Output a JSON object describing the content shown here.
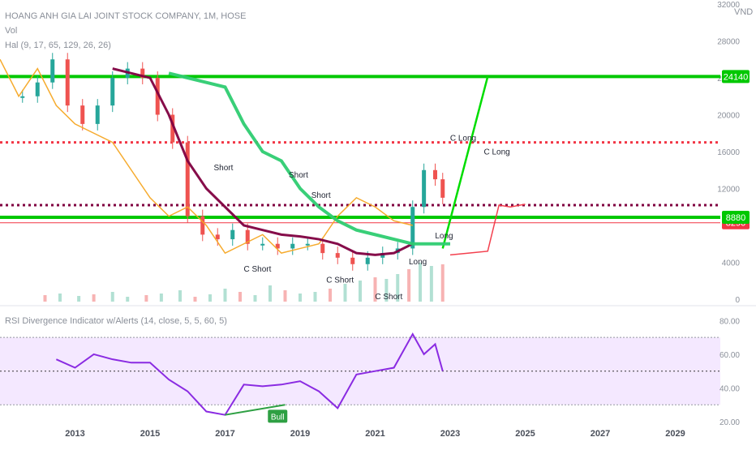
{
  "header": {
    "symbol_line": "HOANG ANH GIA LAI JOINT STOCK COMPANY, 1M, HOSE",
    "vol_label": "Vol",
    "hal_label": "Hal (9, 17, 65, 129, 26, 26)",
    "currency": "VND",
    "rsi_label": "RSI Divergence Indicator w/Alerts (14, close, 5, 5, 60, 5)"
  },
  "price_badges": [
    {
      "value": "24140",
      "color": "#00c800"
    },
    {
      "value": "8290",
      "color": "#f23645"
    },
    {
      "value": "8880",
      "color": "#00c800"
    }
  ],
  "colors": {
    "green_level": "#00dd00",
    "red_dotted": "#f23645",
    "maroon": "#800040",
    "orange": "#f5a623",
    "blue": "#2196f3",
    "purple": "#8a2be2",
    "rsi_band": "#f3e5ff",
    "candle_up": "#26a69a",
    "candle_down": "#ef5350"
  },
  "signals": {
    "short": "Short",
    "c_short": "C Short",
    "long": "Long",
    "c_long": "C Long",
    "bull": "Bull"
  },
  "chart_data": [
    {
      "type": "line",
      "title": "HOANG ANH GIA LAI JOINT STOCK COMPANY, 1M, HOSE",
      "x_ticks": [
        "2013",
        "2015",
        "2017",
        "2019",
        "2021",
        "2023",
        "2025",
        "2027",
        "2029"
      ],
      "y_ticks": [
        0,
        4000,
        8000,
        12000,
        16000,
        20000,
        24000,
        28000,
        32000
      ],
      "ylim": [
        0,
        32000
      ],
      "levels": [
        {
          "value": 24140,
          "color": "#00c800",
          "style": "solid"
        },
        {
          "value": 8880,
          "color": "#00c800",
          "style": "solid"
        },
        {
          "value": 17000,
          "color": "#f23645",
          "style": "dotted"
        },
        {
          "value": 10200,
          "color": "#800040",
          "style": "dotted"
        },
        {
          "value": 8290,
          "color": "#f23645",
          "style": "thin"
        }
      ],
      "series": [
        {
          "color": "#26a69a",
          "x": [
            2011.6,
            2012.0,
            2012.4,
            2012.8,
            2013.2,
            2013.6,
            2014.0,
            2014.4,
            2014.8,
            2015.2,
            2015.6,
            2016.0,
            2016.4,
            2016.8,
            2017.2,
            2017.6,
            2018.0,
            2018.4,
            2018.8,
            2019.2,
            2019.6,
            2020.0,
            2020.4,
            2020.8,
            2021.2,
            2021.6,
            2022.0,
            2022.3,
            2022.6,
            2022.8
          ],
          "y": [
            22000,
            23500,
            26000,
            21000,
            19000,
            21000,
            24000,
            25000,
            24000,
            20000,
            17000,
            9000,
            7000,
            6500,
            7500,
            6000,
            6000,
            5500,
            6000,
            6000,
            5000,
            4500,
            3800,
            4500,
            5000,
            5500,
            10000,
            14000,
            13000,
            11000
          ]
        },
        {
          "color": "#f5a623",
          "x": [
            2011.0,
            2011.5,
            2012.0,
            2012.5,
            2013.0,
            2013.5,
            2014.0,
            2014.5,
            2015.0,
            2015.5,
            2016.0,
            2016.5,
            2017.0,
            2017.5,
            2018.0,
            2018.5,
            2019.0,
            2019.5,
            2020.0,
            2020.5,
            2021.0,
            2021.5,
            2022.0
          ],
          "y": [
            26000,
            22000,
            25000,
            21000,
            19000,
            18000,
            17000,
            14000,
            11000,
            9000,
            10000,
            8000,
            5000,
            6000,
            7000,
            5000,
            5500,
            6000,
            9000,
            11000,
            10000,
            8500,
            8000
          ]
        },
        {
          "color": "#800040",
          "x": [
            2014.0,
            2014.5,
            2015.0,
            2015.5,
            2016.0,
            2016.5,
            2017.0,
            2017.5,
            2018.0,
            2018.5,
            2019.0,
            2019.5,
            2020.0,
            2020.5,
            2021.0,
            2021.5,
            2022.0
          ],
          "y": [
            25000,
            24500,
            24000,
            20000,
            15000,
            12000,
            10000,
            8000,
            7500,
            7000,
            6800,
            6500,
            6000,
            5000,
            4800,
            5000,
            6000
          ]
        },
        {
          "color": "#2ecc71",
          "x": [
            2015.5,
            2016.0,
            2016.5,
            2017.0,
            2017.5,
            2018.0,
            2018.5,
            2019.0,
            2019.5,
            2020.0,
            2020.5,
            2021.0,
            2021.5,
            2022.0,
            2022.5,
            2023.0
          ],
          "y": [
            24500,
            24000,
            23500,
            23000,
            19000,
            16000,
            15000,
            12000,
            10000,
            8500,
            7500,
            7000,
            6500,
            6000,
            6000,
            6000
          ]
        },
        {
          "color": "#f23645",
          "x": [
            2023.0,
            2023.5,
            2024.0,
            2024.3,
            2024.6,
            2025.0
          ],
          "y": [
            4800,
            5000,
            5200,
            10200,
            10000,
            10300
          ]
        }
      ]
    },
    {
      "type": "line",
      "title": "RSI Divergence Indicator w/Alerts (14, close, 5, 5, 60, 5)",
      "y_ticks": [
        20.0,
        40.0,
        60.0,
        80.0
      ],
      "ylim": [
        20,
        85
      ],
      "band": [
        30,
        70
      ],
      "midline": 50,
      "series": [
        {
          "color": "#8a2be2",
          "x": [
            2012.5,
            2013.0,
            2013.5,
            2014.0,
            2014.5,
            2015.0,
            2015.5,
            2016.0,
            2016.5,
            2017.0,
            2017.5,
            2018.0,
            2018.5,
            2019.0,
            2019.5,
            2020.0,
            2020.5,
            2021.0,
            2021.5,
            2022.0,
            2022.3,
            2022.6,
            2022.8
          ],
          "y": [
            57,
            52,
            60,
            57,
            55,
            55,
            45,
            38,
            26,
            24,
            42,
            41,
            42,
            44,
            38,
            28,
            48,
            50,
            52,
            72,
            60,
            66,
            50
          ]
        }
      ],
      "annotation": {
        "label": "Bull",
        "x": 2018.4,
        "y": 28
      }
    }
  ]
}
